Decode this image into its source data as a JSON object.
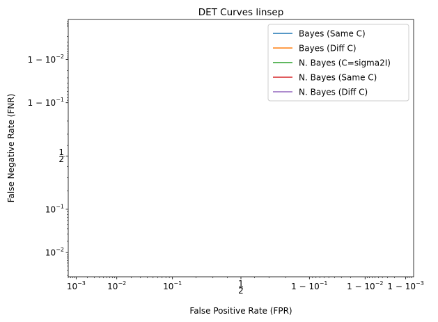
{
  "chart_data": {
    "type": "line",
    "title": "DET Curves linsep",
    "xlabel": "False Positive Rate (FPR)",
    "ylabel": "False Negative Rate (FNR)",
    "x_scale": "probit",
    "y_scale": "probit",
    "xlim": [
      0.0006,
      0.9994
    ],
    "ylim": [
      0.0018,
      0.9995
    ],
    "x_ticks": [
      {
        "value": 0.001,
        "label": "10",
        "exp": "−3",
        "prefix": ""
      },
      {
        "value": 0.01,
        "label": "10",
        "exp": "−2",
        "prefix": ""
      },
      {
        "value": 0.1,
        "label": "10",
        "exp": "−1",
        "prefix": ""
      },
      {
        "value": 0.5,
        "label": "1/2",
        "exp": "",
        "prefix": ""
      },
      {
        "value": 0.9,
        "label": "10",
        "exp": "−1",
        "prefix": "1 − "
      },
      {
        "value": 0.99,
        "label": "10",
        "exp": "−2",
        "prefix": "1 − "
      },
      {
        "value": 0.999,
        "label": "10",
        "exp": "−3",
        "prefix": "1 − "
      }
    ],
    "y_ticks": [
      {
        "value": 0.01,
        "label": "10",
        "exp": "−2",
        "prefix": ""
      },
      {
        "value": 0.1,
        "label": "10",
        "exp": "−1",
        "prefix": ""
      },
      {
        "value": 0.5,
        "label": "1/2",
        "exp": "",
        "prefix": ""
      },
      {
        "value": 0.9,
        "label": "10",
        "exp": "−1",
        "prefix": "1 − "
      },
      {
        "value": 0.99,
        "label": "10",
        "exp": "−2",
        "prefix": "1 − "
      }
    ],
    "series": [
      {
        "name": "Bayes (Same C)",
        "color": "#1f77b4",
        "points": []
      },
      {
        "name": "Bayes (Diff C)",
        "color": "#ff7f0e",
        "points": []
      },
      {
        "name": "N. Bayes (C=sigma2I)",
        "color": "#2ca02c",
        "points": []
      },
      {
        "name": "N. Bayes (Same C)",
        "color": "#d62728",
        "points": []
      },
      {
        "name": "N. Bayes (Diff C)",
        "color": "#9467bd",
        "points": []
      }
    ],
    "legend_position": "top-right",
    "grid": false
  }
}
